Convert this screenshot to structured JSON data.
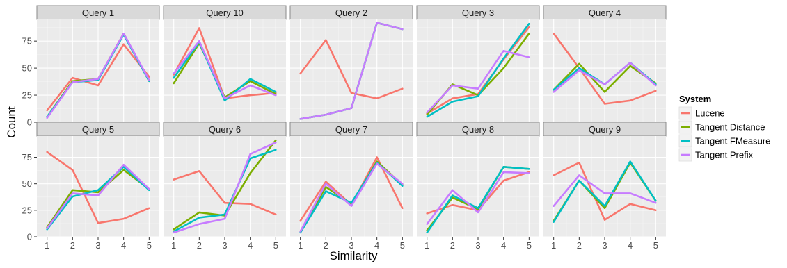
{
  "chart_data": {
    "type": "line",
    "title": "",
    "xlabel": "Similarity",
    "ylabel": "Count",
    "x": [
      1,
      2,
      3,
      4,
      5
    ],
    "ylim": [
      0,
      95
    ],
    "y_ticks": [
      0,
      25,
      50,
      75
    ],
    "grid": true,
    "legend": {
      "title": "System",
      "placement": "right",
      "entries": [
        "Lucene",
        "Tangent Distance",
        "Tangent FMeasure",
        "Tangent Prefix"
      ]
    },
    "colors": {
      "Lucene": "#f8766d",
      "Tangent Distance": "#7cae00",
      "Tangent FMeasure": "#00bfc4",
      "Tangent Prefix": "#c77cff"
    },
    "panel_background": "#ebebeb",
    "strip_background": "#d9d9d9",
    "panels": [
      {
        "label": "Query 1",
        "series": [
          {
            "name": "Lucene",
            "values": [
              11,
              41,
              34,
              72,
              42
            ]
          },
          {
            "name": "Tangent Distance",
            "values": [
              5,
              38,
              40,
              82,
              38
            ]
          },
          {
            "name": "Tangent FMeasure",
            "values": [
              5,
              37,
              39,
              81,
              38
            ]
          },
          {
            "name": "Tangent Prefix",
            "values": [
              4,
              37,
              40,
              82,
              39
            ]
          }
        ]
      },
      {
        "label": "Query 10",
        "series": [
          {
            "name": "Lucene",
            "values": [
              44,
              87,
              22,
              25,
              27
            ]
          },
          {
            "name": "Tangent Distance",
            "values": [
              36,
              73,
              23,
              38,
              26
            ]
          },
          {
            "name": "Tangent FMeasure",
            "values": [
              41,
              74,
              20,
              40,
              28
            ]
          },
          {
            "name": "Tangent Prefix",
            "values": [
              45,
              75,
              22,
              34,
              25
            ]
          }
        ]
      },
      {
        "label": "Query 2",
        "series": [
          {
            "name": "Lucene",
            "values": [
              45,
              76,
              27,
              22,
              31
            ]
          },
          {
            "name": "Tangent Distance",
            "values": [
              3,
              7,
              13,
              92,
              86
            ]
          },
          {
            "name": "Tangent FMeasure",
            "values": [
              3,
              7,
              13,
              92,
              86
            ]
          },
          {
            "name": "Tangent Prefix",
            "values": [
              3,
              7,
              13,
              92,
              86
            ]
          }
        ]
      },
      {
        "label": "Query 3",
        "series": [
          {
            "name": "Lucene",
            "values": [
              8,
              22,
              26,
              58,
              88
            ]
          },
          {
            "name": "Tangent Distance",
            "values": [
              7,
              35,
              25,
              50,
              82
            ]
          },
          {
            "name": "Tangent FMeasure",
            "values": [
              5,
              19,
              24,
              59,
              91
            ]
          },
          {
            "name": "Tangent Prefix",
            "values": [
              9,
              34,
              31,
              66,
              60
            ]
          }
        ]
      },
      {
        "label": "Query 4",
        "series": [
          {
            "name": "Lucene",
            "values": [
              82,
              50,
              17,
              20,
              29
            ]
          },
          {
            "name": "Tangent Distance",
            "values": [
              30,
              54,
              28,
              52,
              36
            ]
          },
          {
            "name": "Tangent FMeasure",
            "values": [
              30,
              50,
              35,
              55,
              35
            ]
          },
          {
            "name": "Tangent Prefix",
            "values": [
              28,
              48,
              35,
              55,
              34
            ]
          }
        ]
      },
      {
        "label": "Query 5",
        "series": [
          {
            "name": "Lucene",
            "values": [
              80,
              63,
              13,
              17,
              27
            ]
          },
          {
            "name": "Tangent Distance",
            "values": [
              9,
              44,
              42,
              63,
              45
            ]
          },
          {
            "name": "Tangent FMeasure",
            "values": [
              7,
              38,
              44,
              66,
              44
            ]
          },
          {
            "name": "Tangent Prefix",
            "values": [
              8,
              41,
              39,
              68,
              45
            ]
          }
        ]
      },
      {
        "label": "Query 6",
        "series": [
          {
            "name": "Lucene",
            "values": [
              54,
              62,
              32,
              31,
              21
            ]
          },
          {
            "name": "Tangent Distance",
            "values": [
              7,
              23,
              20,
              60,
              91
            ]
          },
          {
            "name": "Tangent FMeasure",
            "values": [
              5,
              18,
              21,
              74,
              82
            ]
          },
          {
            "name": "Tangent Prefix",
            "values": [
              4,
              12,
              17,
              78,
              89
            ]
          }
        ]
      },
      {
        "label": "Query 7",
        "series": [
          {
            "name": "Lucene",
            "values": [
              15,
              52,
              30,
              75,
              27
            ]
          },
          {
            "name": "Tangent Distance",
            "values": [
              5,
              47,
              31,
              71,
              49
            ]
          },
          {
            "name": "Tangent FMeasure",
            "values": [
              4,
              43,
              32,
              70,
              48
            ]
          },
          {
            "name": "Tangent Prefix",
            "values": [
              5,
              50,
              29,
              69,
              50
            ]
          }
        ]
      },
      {
        "label": "Query 8",
        "series": [
          {
            "name": "Lucene",
            "values": [
              22,
              30,
              25,
              53,
              61
            ]
          },
          {
            "name": "Tangent Distance",
            "values": [
              6,
              37,
              26,
              66,
              64
            ]
          },
          {
            "name": "Tangent FMeasure",
            "values": [
              4,
              39,
              27,
              66,
              64
            ]
          },
          {
            "name": "Tangent Prefix",
            "values": [
              12,
              44,
              23,
              61,
              60
            ]
          }
        ]
      },
      {
        "label": "Query 9",
        "series": [
          {
            "name": "Lucene",
            "values": [
              58,
              70,
              16,
              31,
              25
            ]
          },
          {
            "name": "Tangent Distance",
            "values": [
              15,
              53,
              27,
              70,
              34
            ]
          },
          {
            "name": "Tangent FMeasure",
            "values": [
              14,
              53,
              29,
              71,
              34
            ]
          },
          {
            "name": "Tangent Prefix",
            "values": [
              29,
              58,
              41,
              41,
              32
            ]
          }
        ]
      }
    ]
  }
}
